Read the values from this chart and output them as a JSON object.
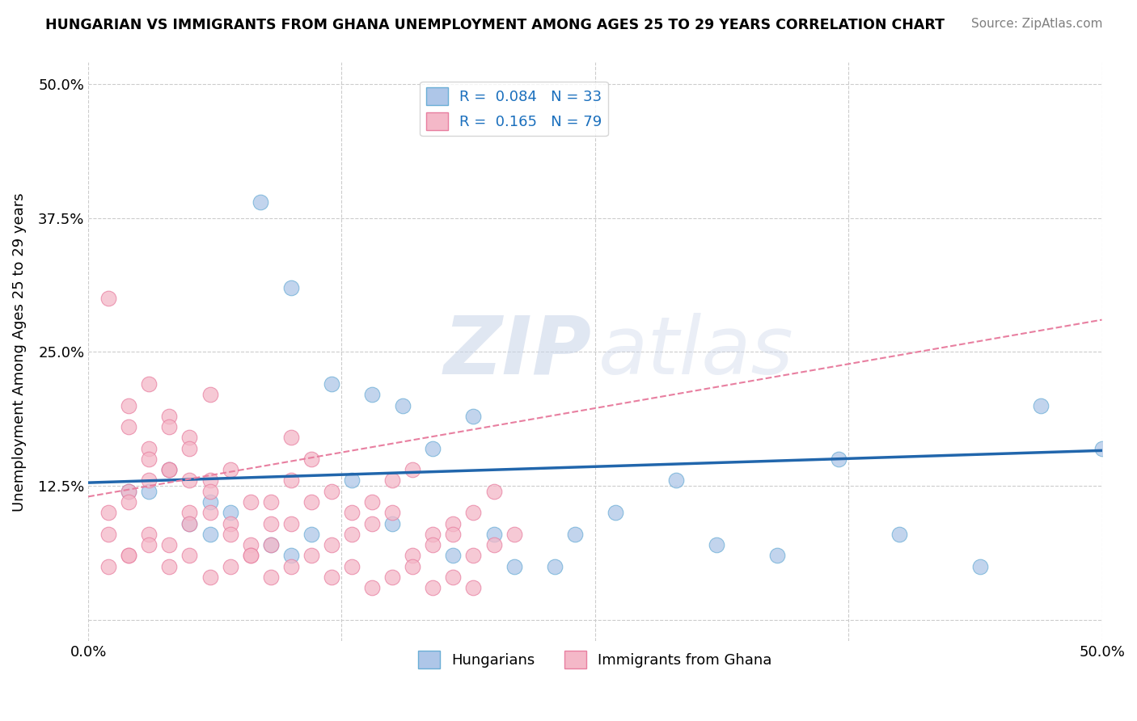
{
  "title": "HUNGARIAN VS IMMIGRANTS FROM GHANA UNEMPLOYMENT AMONG AGES 25 TO 29 YEARS CORRELATION CHART",
  "source": "Source: ZipAtlas.com",
  "xlabel": "",
  "ylabel": "Unemployment Among Ages 25 to 29 years",
  "xlim": [
    0.0,
    0.5
  ],
  "ylim": [
    -0.02,
    0.52
  ],
  "yticks": [
    0.0,
    0.125,
    0.25,
    0.375,
    0.5
  ],
  "ytick_labels": [
    "",
    "12.5%",
    "25.0%",
    "37.5%",
    "50.0%"
  ],
  "xticks": [
    0.0,
    0.125,
    0.25,
    0.375,
    0.5
  ],
  "xtick_labels": [
    "0.0%",
    "",
    "",
    "",
    "50.0%"
  ],
  "hungarian_scatter_x": [
    0.04,
    0.06,
    0.085,
    0.1,
    0.12,
    0.14,
    0.155,
    0.17,
    0.19,
    0.21,
    0.24,
    0.26,
    0.29,
    0.31,
    0.34,
    0.37,
    0.4,
    0.44,
    0.47,
    0.5,
    0.03,
    0.05,
    0.07,
    0.09,
    0.11,
    0.13,
    0.15,
    0.18,
    0.2,
    0.23,
    0.02,
    0.06,
    0.1
  ],
  "hungarian_scatter_y": [
    0.14,
    0.11,
    0.39,
    0.31,
    0.22,
    0.21,
    0.2,
    0.16,
    0.19,
    0.05,
    0.08,
    0.1,
    0.13,
    0.07,
    0.06,
    0.15,
    0.08,
    0.05,
    0.2,
    0.16,
    0.12,
    0.09,
    0.1,
    0.07,
    0.08,
    0.13,
    0.09,
    0.06,
    0.08,
    0.05,
    0.12,
    0.08,
    0.06
  ],
  "ghana_scatter_x": [
    0.01,
    0.02,
    0.02,
    0.03,
    0.03,
    0.04,
    0.04,
    0.05,
    0.05,
    0.06,
    0.01,
    0.02,
    0.03,
    0.04,
    0.05,
    0.06,
    0.07,
    0.08,
    0.09,
    0.1,
    0.01,
    0.02,
    0.03,
    0.04,
    0.05,
    0.06,
    0.07,
    0.08,
    0.09,
    0.1,
    0.11,
    0.12,
    0.13,
    0.14,
    0.15,
    0.16,
    0.17,
    0.18,
    0.19,
    0.2,
    0.02,
    0.03,
    0.04,
    0.05,
    0.06,
    0.07,
    0.08,
    0.09,
    0.1,
    0.11,
    0.12,
    0.13,
    0.14,
    0.15,
    0.16,
    0.17,
    0.18,
    0.19,
    0.2,
    0.21,
    0.01,
    0.02,
    0.03,
    0.04,
    0.05,
    0.06,
    0.07,
    0.08,
    0.09,
    0.1,
    0.11,
    0.12,
    0.13,
    0.14,
    0.15,
    0.16,
    0.17,
    0.18,
    0.19
  ],
  "ghana_scatter_y": [
    0.3,
    0.2,
    0.18,
    0.22,
    0.16,
    0.14,
    0.19,
    0.17,
    0.13,
    0.21,
    0.1,
    0.12,
    0.15,
    0.18,
    0.16,
    0.13,
    0.14,
    0.11,
    0.09,
    0.17,
    0.08,
    0.11,
    0.13,
    0.14,
    0.1,
    0.12,
    0.09,
    0.07,
    0.11,
    0.13,
    0.15,
    0.12,
    0.1,
    0.11,
    0.13,
    0.14,
    0.08,
    0.09,
    0.1,
    0.12,
    0.06,
    0.08,
    0.07,
    0.09,
    0.1,
    0.08,
    0.06,
    0.07,
    0.09,
    0.11,
    0.07,
    0.08,
    0.09,
    0.1,
    0.06,
    0.07,
    0.08,
    0.06,
    0.07,
    0.08,
    0.05,
    0.06,
    0.07,
    0.05,
    0.06,
    0.04,
    0.05,
    0.06,
    0.04,
    0.05,
    0.06,
    0.04,
    0.05,
    0.03,
    0.04,
    0.05,
    0.03,
    0.04,
    0.03
  ],
  "hungarian_line_x": [
    0.0,
    0.5
  ],
  "hungarian_line_y": [
    0.128,
    0.158
  ],
  "ghana_line_x": [
    0.0,
    0.5
  ],
  "ghana_line_y": [
    0.115,
    0.28
  ],
  "scatter_size": 180,
  "hungarian_color": "#aec6e8",
  "ghana_color": "#f4b8c8",
  "hungarian_edge_color": "#6baed6",
  "ghana_edge_color": "#e87fa0",
  "hungarian_line_color": "#2166ac",
  "ghana_line_color": "#e87fa0",
  "background_color": "#ffffff",
  "grid_color": "#cccccc",
  "watermark_zip_color": "#c8d4e8",
  "watermark_atlas_color": "#c8d4e8"
}
